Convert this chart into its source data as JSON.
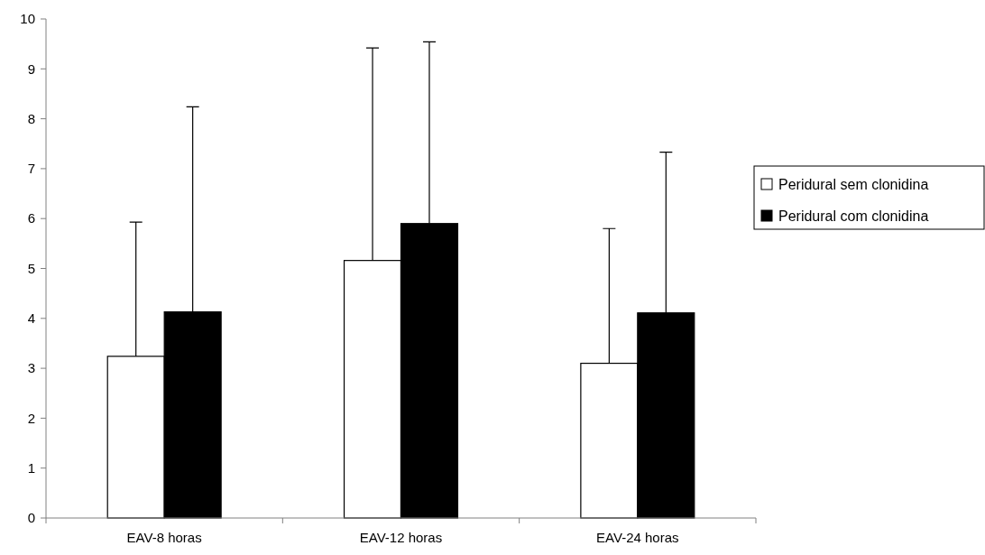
{
  "chart_data": {
    "type": "bar",
    "categories": [
      "EAV-8 horas",
      "EAV-12 horas",
      "EAV-24 horas"
    ],
    "series": [
      {
        "name": "Peridural sem clonidina",
        "color": "#ffffff",
        "values": [
          3.24,
          5.16,
          3.1
        ],
        "errors": [
          [
            3.24,
            5.93
          ],
          [
            5.16,
            9.42
          ],
          [
            3.1,
            5.8
          ]
        ]
      },
      {
        "name": "Peridural com clonidina",
        "color": "#000000",
        "values": [
          4.13,
          5.9,
          4.11
        ],
        "errors": [
          [
            4.13,
            8.24
          ],
          [
            5.9,
            9.54
          ],
          [
            4.11,
            7.33
          ]
        ]
      }
    ],
    "ylim": [
      0,
      10
    ],
    "yticks": [
      0,
      1,
      2,
      3,
      4,
      5,
      6,
      7,
      8,
      9,
      10
    ],
    "grid": false,
    "legend": "right"
  }
}
